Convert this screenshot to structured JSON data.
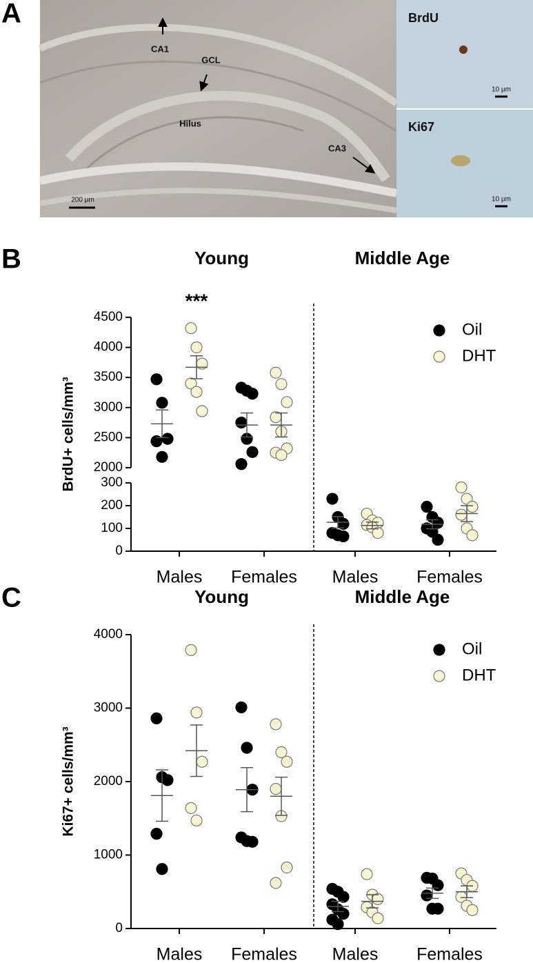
{
  "figure_a": {
    "label": "A",
    "annotations": [
      "CA1",
      "GCL",
      "Hilus",
      "CA3"
    ],
    "scale_bar": "200 µm",
    "insets": [
      {
        "label": "BrdU",
        "scale_bar": "10 µm"
      },
      {
        "label": "Ki67",
        "scale_bar": "10 µm"
      }
    ]
  },
  "chart_data": [
    {
      "type": "dot",
      "panel_label": "B",
      "ylabel": "BrdU+ cells/mm³",
      "groups": [
        "Young",
        "Middle Age"
      ],
      "categories": [
        "Males",
        "Females",
        "Males",
        "Females"
      ],
      "annotations": [
        "***"
      ],
      "y_segments": [
        {
          "ylim": [
            0,
            300
          ],
          "yticks": [
            0,
            100,
            200,
            300
          ]
        },
        {
          "ylim": [
            2000,
            4500
          ],
          "yticks": [
            2000,
            2500,
            3000,
            3500,
            4000,
            4500
          ]
        }
      ],
      "series": [
        {
          "name": "Oil",
          "color": "#000000",
          "values": [
            [
              3470,
              3080,
              2480,
              2440,
              2180
            ],
            [
              3330,
              3280,
              3230,
              2750,
              2480,
              2260,
              2060
            ],
            [
              230,
              150,
              120,
              80,
              70,
              65
            ],
            [
              195,
              150,
              125,
              100,
              85,
              50
            ]
          ],
          "mean": [
            2730,
            2710,
            127,
            118
          ],
          "sem": [
            230,
            200,
            25,
            20
          ]
        },
        {
          "name": "DHT",
          "color": "#f8f4cf",
          "values": [
            [
              4320,
              4000,
              3730,
              3400,
              3260,
              2940
            ],
            [
              3580,
              3390,
              3090,
              2840,
              2600,
              2320,
              2250,
              2210
            ],
            [
              165,
              135,
              125,
              115,
              105,
              80
            ],
            [
              280,
              230,
              195,
              160,
              100,
              70
            ]
          ],
          "mean": [
            3670,
            2710,
            113,
            165
          ],
          "sem": [
            190,
            200,
            15,
            35
          ]
        }
      ]
    },
    {
      "type": "dot",
      "panel_label": "C",
      "ylabel": "Ki67+ cells/mm³",
      "groups": [
        "Young",
        "Middle Age"
      ],
      "categories": [
        "Males",
        "Females",
        "Males",
        "Females"
      ],
      "ylim": [
        0,
        4000
      ],
      "yticks": [
        0,
        1000,
        2000,
        3000,
        4000
      ],
      "series": [
        {
          "name": "Oil",
          "color": "#000000",
          "values": [
            [
              2860,
              2060,
              2020,
              1290,
              810
            ],
            [
              3010,
              2460,
              1890,
              1240,
              1190,
              1180
            ],
            [
              540,
              500,
              430,
              330,
              260,
              200,
              120,
              60
            ],
            [
              690,
              680,
              590,
              450,
              270,
              270
            ]
          ],
          "mean": [
            1810,
            1890,
            300,
            480
          ],
          "sem": [
            350,
            300,
            70,
            70
          ]
        },
        {
          "name": "DHT",
          "color": "#f8f4cf",
          "values": [
            [
              3790,
              2940,
              2270,
              1640,
              1470
            ],
            [
              2780,
              2400,
              2270,
              1900,
              1530,
              830,
              620
            ],
            [
              740,
              460,
              400,
              290,
              220,
              140
            ],
            [
              750,
              660,
              580,
              430,
              310,
              250
            ]
          ],
          "mean": [
            2420,
            1800,
            370,
            500
          ],
          "sem": [
            350,
            260,
            90,
            80
          ]
        }
      ]
    }
  ]
}
